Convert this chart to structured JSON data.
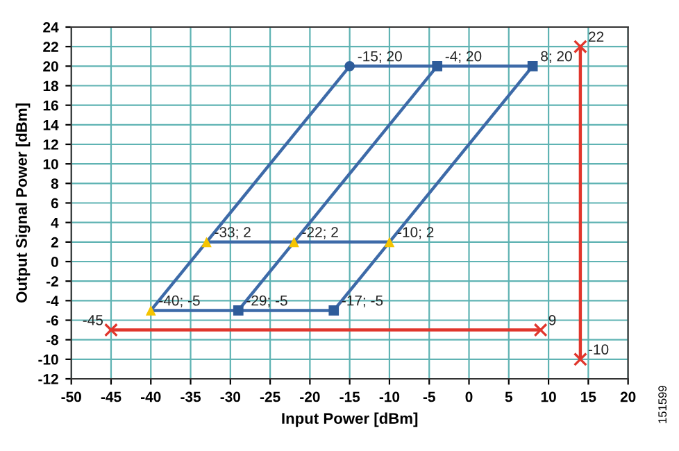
{
  "chart_data": {
    "type": "line",
    "xlabel": "Input Power [dBm]",
    "ylabel": "Output Signal Power [dBm]",
    "xlim": [
      -50,
      20
    ],
    "xticks": [
      -50,
      -45,
      -40,
      -35,
      -30,
      -25,
      -20,
      -15,
      -10,
      -5,
      0,
      5,
      10,
      15,
      20
    ],
    "ylim": [
      -12,
      24
    ],
    "yticks": [
      -12,
      -10,
      -8,
      -6,
      -4,
      -2,
      0,
      2,
      4,
      6,
      8,
      10,
      12,
      14,
      16,
      18,
      20,
      22,
      24
    ],
    "grid": true,
    "line_style": "solid",
    "series": [
      {
        "marker": "none",
        "color": "#3d6aa8",
        "x": [
          -40,
          -33,
          -15
        ],
        "values": [
          -5,
          2,
          20
        ]
      },
      {
        "marker": "none",
        "color": "#3d6aa8",
        "x": [
          -29,
          -22,
          -4
        ],
        "values": [
          -5,
          2,
          20
        ]
      },
      {
        "marker": "none",
        "color": "#3d6aa8",
        "x": [
          -17,
          -10,
          8
        ],
        "values": [
          -5,
          2,
          20
        ]
      },
      {
        "marker": "none",
        "color": "#3d6aa8",
        "x": [
          -15,
          -4,
          8
        ],
        "values": [
          20,
          20,
          20
        ]
      },
      {
        "marker": "none",
        "color": "#3d6aa8",
        "x": [
          -33,
          -22,
          -10
        ],
        "values": [
          2,
          2,
          2
        ]
      },
      {
        "marker": "none",
        "color": "#3d6aa8",
        "x": [
          -40,
          -29,
          -17
        ],
        "values": [
          -5,
          -5,
          -5
        ]
      },
      {
        "marker": "cross",
        "color": "#e0362c",
        "x": [
          -45,
          9
        ],
        "values": [
          -7,
          -7
        ]
      },
      {
        "marker": "cross",
        "color": "#e0362c",
        "x": [
          14,
          14
        ],
        "values": [
          22,
          -10
        ]
      },
      {
        "type": "scatter",
        "marker": "triangle",
        "color": "#f5c400",
        "x": [
          -33,
          -22,
          -10,
          -40
        ],
        "values": [
          2,
          2,
          2,
          -5
        ],
        "value_labels": [
          "-33; 2",
          "-22; 2",
          "-10; 2",
          "-40; -5"
        ]
      },
      {
        "type": "scatter",
        "marker": "square",
        "color": "#2e5c9a",
        "x": [
          -29,
          -17,
          -4,
          8
        ],
        "values": [
          -5,
          -5,
          20,
          20
        ],
        "value_labels": [
          "-29; -5",
          "-17; -5",
          "-4; 20",
          "8; 20"
        ]
      },
      {
        "type": "scatter",
        "marker": "circle",
        "color": "#2e5c9a",
        "x": [
          -15
        ],
        "values": [
          20
        ],
        "value_labels": [
          "-15; 20"
        ]
      }
    ],
    "annotations": [
      {
        "text": "-45",
        "x": -45,
        "y": -7
      },
      {
        "text": "9",
        "x": 9,
        "y": -7
      },
      {
        "text": "22",
        "x": 14,
        "y": 22
      },
      {
        "text": "-10",
        "x": 14,
        "y": -10
      },
      "151599"
    ]
  }
}
